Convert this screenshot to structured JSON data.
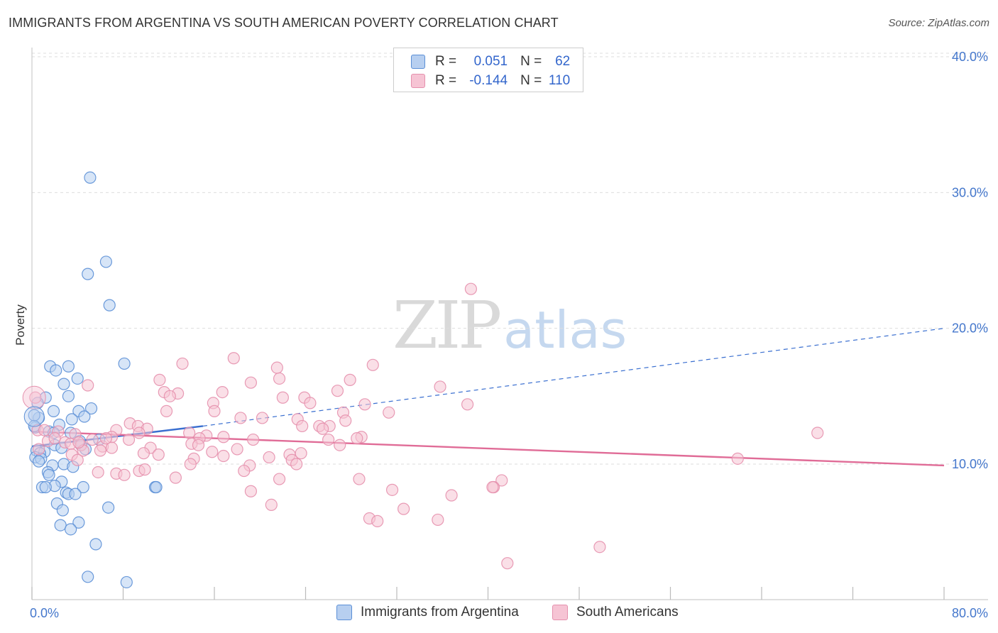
{
  "title": "IMMIGRANTS FROM ARGENTINA VS SOUTH AMERICAN POVERTY CORRELATION CHART",
  "source": "Source: ZipAtlas.com",
  "watermark": {
    "zip": "ZIP",
    "atlas": "atlas"
  },
  "colors": {
    "blue_fill": "#b7cff0",
    "blue_stroke": "#5b8fd6",
    "blue_line": "#3a6fd0",
    "pink_fill": "#f6c4d4",
    "pink_stroke": "#e590ad",
    "pink_line": "#e06c97",
    "grid": "#dddddd",
    "tick_label": "#4477cc"
  },
  "legend": {
    "rows": [
      {
        "r_label": "R =",
        "r_value": "0.051",
        "n_label": "N =",
        "n_value": "62"
      },
      {
        "r_label": "R =",
        "r_value": "-0.144",
        "n_label": "N =",
        "n_value": "110"
      }
    ]
  },
  "bottom_legend": {
    "series1": "Immigrants from Argentina",
    "series2": "South Americans"
  },
  "chart_data": {
    "type": "scatter",
    "title": "IMMIGRANTS FROM ARGENTINA VS SOUTH AMERICAN POVERTY CORRELATION CHART",
    "xlabel": "",
    "ylabel": "Poverty",
    "xlim": [
      0,
      80
    ],
    "ylim": [
      0,
      42
    ],
    "x_tick_labels": [
      "0.0%",
      "80.0%"
    ],
    "y_ticks": [
      10,
      20,
      30,
      40
    ],
    "y_tick_labels": [
      "10.0%",
      "20.0%",
      "30.0%",
      "40.0%"
    ],
    "grid": "horizontal dashed",
    "legend_position": "top-center",
    "series": [
      {
        "name": "Immigrants from Argentina",
        "color": "#5b8fd6",
        "points": [
          [
            5.1,
            31.1
          ],
          [
            6.5,
            24.9
          ],
          [
            4.9,
            24.0
          ],
          [
            6.8,
            21.7
          ],
          [
            8.1,
            17.4
          ],
          [
            1.6,
            17.2
          ],
          [
            3.2,
            17.2
          ],
          [
            2.1,
            16.9
          ],
          [
            4.0,
            16.3
          ],
          [
            2.8,
            15.9
          ],
          [
            1.2,
            14.9
          ],
          [
            3.2,
            15.0
          ],
          [
            0.5,
            14.5
          ],
          [
            5.2,
            14.1
          ],
          [
            1.9,
            13.9
          ],
          [
            4.1,
            13.9
          ],
          [
            0.6,
            13.4
          ],
          [
            3.5,
            13.3
          ],
          [
            4.6,
            13.5
          ],
          [
            2.4,
            12.9
          ],
          [
            0.3,
            12.7
          ],
          [
            1.5,
            12.4
          ],
          [
            1.9,
            12.3
          ],
          [
            3.4,
            12.3
          ],
          [
            5.9,
            11.8
          ],
          [
            4.2,
            11.7
          ],
          [
            2.0,
            11.4
          ],
          [
            2.6,
            11.2
          ],
          [
            4.3,
            11.4
          ],
          [
            4.7,
            11.1
          ],
          [
            0.4,
            11.0
          ],
          [
            1.1,
            10.9
          ],
          [
            0.7,
            10.8
          ],
          [
            0.3,
            10.5
          ],
          [
            0.8,
            10.4
          ],
          [
            0.6,
            10.2
          ],
          [
            2.8,
            10.0
          ],
          [
            1.8,
            9.9
          ],
          [
            3.6,
            9.8
          ],
          [
            1.4,
            9.4
          ],
          [
            1.5,
            9.2
          ],
          [
            2.6,
            8.7
          ],
          [
            2.0,
            8.4
          ],
          [
            0.9,
            8.3
          ],
          [
            1.2,
            8.3
          ],
          [
            4.5,
            8.3
          ],
          [
            10.8,
            8.3
          ],
          [
            10.9,
            8.3
          ],
          [
            3.0,
            7.9
          ],
          [
            3.2,
            7.8
          ],
          [
            3.8,
            7.8
          ],
          [
            2.2,
            7.1
          ],
          [
            6.7,
            6.8
          ],
          [
            2.7,
            6.6
          ],
          [
            2.5,
            5.5
          ],
          [
            4.1,
            5.7
          ],
          [
            3.4,
            5.2
          ],
          [
            5.6,
            4.1
          ],
          [
            4.9,
            1.7
          ],
          [
            8.3,
            1.3
          ],
          [
            0.2,
            13.6
          ],
          [
            0.2,
            12.8
          ]
        ],
        "trend": {
          "x": [
            0,
            15
          ],
          "y": [
            11.3,
            12.8
          ],
          "dashed_extension_to": [
            80,
            20.0
          ]
        }
      },
      {
        "name": "South Americans",
        "color": "#e590ad",
        "points": [
          [
            38.5,
            22.9
          ],
          [
            17.7,
            17.8
          ],
          [
            13.2,
            17.4
          ],
          [
            21.5,
            17.1
          ],
          [
            29.9,
            17.3
          ],
          [
            11.2,
            16.2
          ],
          [
            21.7,
            16.3
          ],
          [
            27.9,
            16.2
          ],
          [
            19.2,
            16.0
          ],
          [
            4.9,
            15.8
          ],
          [
            35.8,
            15.7
          ],
          [
            11.6,
            15.3
          ],
          [
            12.8,
            15.2
          ],
          [
            16.7,
            15.3
          ],
          [
            26.8,
            15.4
          ],
          [
            12.1,
            15.0
          ],
          [
            22.0,
            14.9
          ],
          [
            23.9,
            14.9
          ],
          [
            24.4,
            14.5
          ],
          [
            15.9,
            14.5
          ],
          [
            29.2,
            14.4
          ],
          [
            38.2,
            14.4
          ],
          [
            0.3,
            14.9
          ],
          [
            11.8,
            13.9
          ],
          [
            16.0,
            13.9
          ],
          [
            27.3,
            13.8
          ],
          [
            31.3,
            13.8
          ],
          [
            18.3,
            13.4
          ],
          [
            20.2,
            13.4
          ],
          [
            23.3,
            13.3
          ],
          [
            8.6,
            13.0
          ],
          [
            27.5,
            13.2
          ],
          [
            9.3,
            12.8
          ],
          [
            23.7,
            12.8
          ],
          [
            25.2,
            12.8
          ],
          [
            26.1,
            12.8
          ],
          [
            25.5,
            12.6
          ],
          [
            7.4,
            12.5
          ],
          [
            10.1,
            12.6
          ],
          [
            2.3,
            12.4
          ],
          [
            13.8,
            12.3
          ],
          [
            15.3,
            12.1
          ],
          [
            3.8,
            12.2
          ],
          [
            0.5,
            12.5
          ],
          [
            9.4,
            12.3
          ],
          [
            16.8,
            12.0
          ],
          [
            28.9,
            12.0
          ],
          [
            7.0,
            12.0
          ],
          [
            14.7,
            11.9
          ],
          [
            5.3,
            11.8
          ],
          [
            8.5,
            11.8
          ],
          [
            26.0,
            11.8
          ],
          [
            28.5,
            11.9
          ],
          [
            14.0,
            11.5
          ],
          [
            19.4,
            11.8
          ],
          [
            1.4,
            11.7
          ],
          [
            2.9,
            11.6
          ],
          [
            3.4,
            11.5
          ],
          [
            4.3,
            11.4
          ],
          [
            6.2,
            11.3
          ],
          [
            7.0,
            11.2
          ],
          [
            14.6,
            11.4
          ],
          [
            27.0,
            11.4
          ],
          [
            10.4,
            11.2
          ],
          [
            18.0,
            11.1
          ],
          [
            4.5,
            11.0
          ],
          [
            6.0,
            11.0
          ],
          [
            15.8,
            10.9
          ],
          [
            23.6,
            10.8
          ],
          [
            9.8,
            10.8
          ],
          [
            3.5,
            10.7
          ],
          [
            11.1,
            10.7
          ],
          [
            16.8,
            10.6
          ],
          [
            22.6,
            10.7
          ],
          [
            20.8,
            10.5
          ],
          [
            14.2,
            10.4
          ],
          [
            4.0,
            10.3
          ],
          [
            22.8,
            10.3
          ],
          [
            61.9,
            10.4
          ],
          [
            13.9,
            10.0
          ],
          [
            19.1,
            9.9
          ],
          [
            23.2,
            10.0
          ],
          [
            18.6,
            9.5
          ],
          [
            5.8,
            9.4
          ],
          [
            7.4,
            9.3
          ],
          [
            9.4,
            9.5
          ],
          [
            9.9,
            9.6
          ],
          [
            8.1,
            9.2
          ],
          [
            12.6,
            9.0
          ],
          [
            21.7,
            8.9
          ],
          [
            28.7,
            8.9
          ],
          [
            41.2,
            8.8
          ],
          [
            40.5,
            8.3
          ],
          [
            19.2,
            8.0
          ],
          [
            31.6,
            8.1
          ],
          [
            36.8,
            7.7
          ],
          [
            32.6,
            6.7
          ],
          [
            21.0,
            7.0
          ],
          [
            29.6,
            6.0
          ],
          [
            35.6,
            5.9
          ],
          [
            30.3,
            5.8
          ],
          [
            41.7,
            2.7
          ],
          [
            49.8,
            3.9
          ],
          [
            68.9,
            12.3
          ],
          [
            40.4,
            8.3
          ],
          [
            1.1,
            12.5
          ],
          [
            0.6,
            11.1
          ],
          [
            2.0,
            11.9
          ],
          [
            4.1,
            11.6
          ],
          [
            6.5,
            11.9
          ]
        ],
        "trend": {
          "x": [
            0,
            80
          ],
          "y": [
            12.4,
            9.9
          ]
        }
      }
    ]
  }
}
